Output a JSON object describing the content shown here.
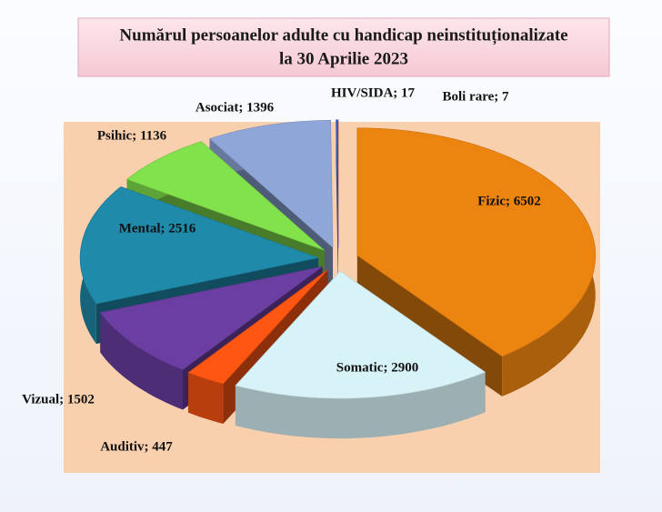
{
  "chart_data": {
    "type": "pie",
    "title": [
      "Numărul persoanelor adulte cu handicap neinstituționalizate",
      "la  30 Aprilie 2023"
    ],
    "values": [
      6502,
      2900,
      447,
      1502,
      2516,
      1136,
      1396,
      17,
      7
    ],
    "value_labels": [
      "Fizic; 6502",
      "Somatic; 2900",
      "Auditiv; 447",
      "Vizual; 1502",
      "Mental; 2516",
      "Psihic; 1136",
      "Asociat; 1396",
      "HIV/SIDA; 17",
      "Boli rare; 7"
    ],
    "colors": [
      "#ec8410",
      "#d8f3f7",
      "#ff5612",
      "#6b3fa2",
      "#1f8aaa",
      "#82e24c",
      "#8fa7d8",
      "#3a5fc8",
      "#c0504d"
    ]
  }
}
